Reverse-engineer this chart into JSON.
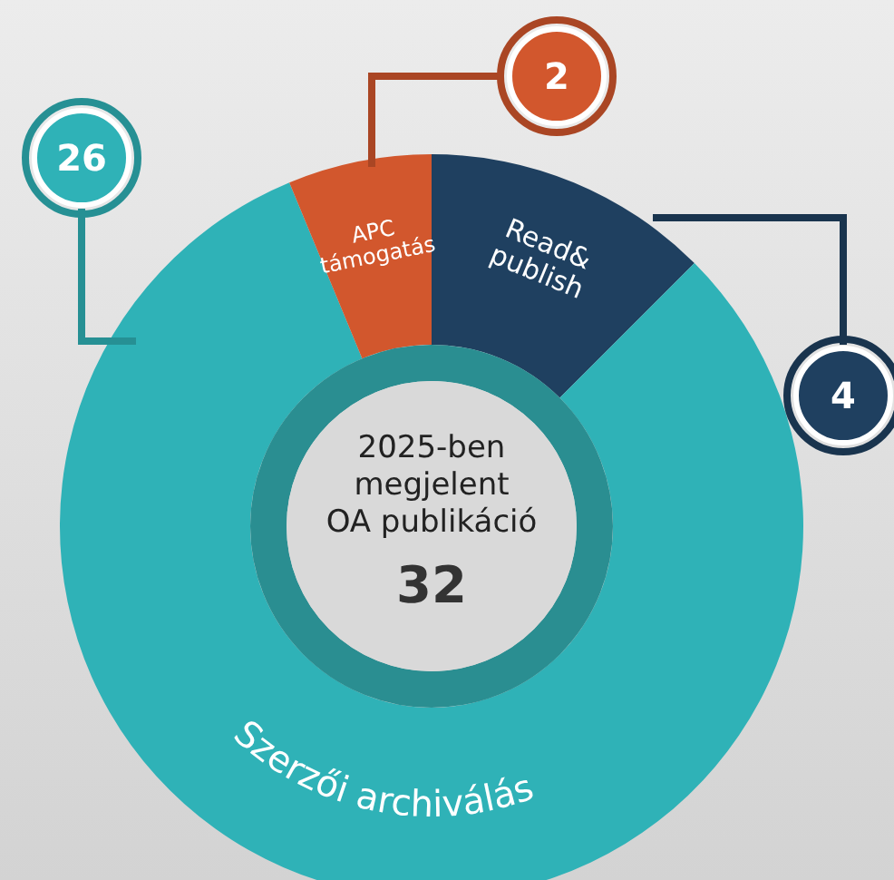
{
  "chart_data": {
    "type": "donut",
    "title": "2025-ben megjelent OA publikáció",
    "categories": [
      "Read&publish",
      "Szerzői archiválás",
      "APC támogatás"
    ],
    "values": [
      4,
      26,
      2
    ],
    "colors": [
      "#1f4060",
      "#2fb2b7",
      "#d2572d"
    ],
    "data_labels": true,
    "annotations": [
      "32"
    ]
  }
}
